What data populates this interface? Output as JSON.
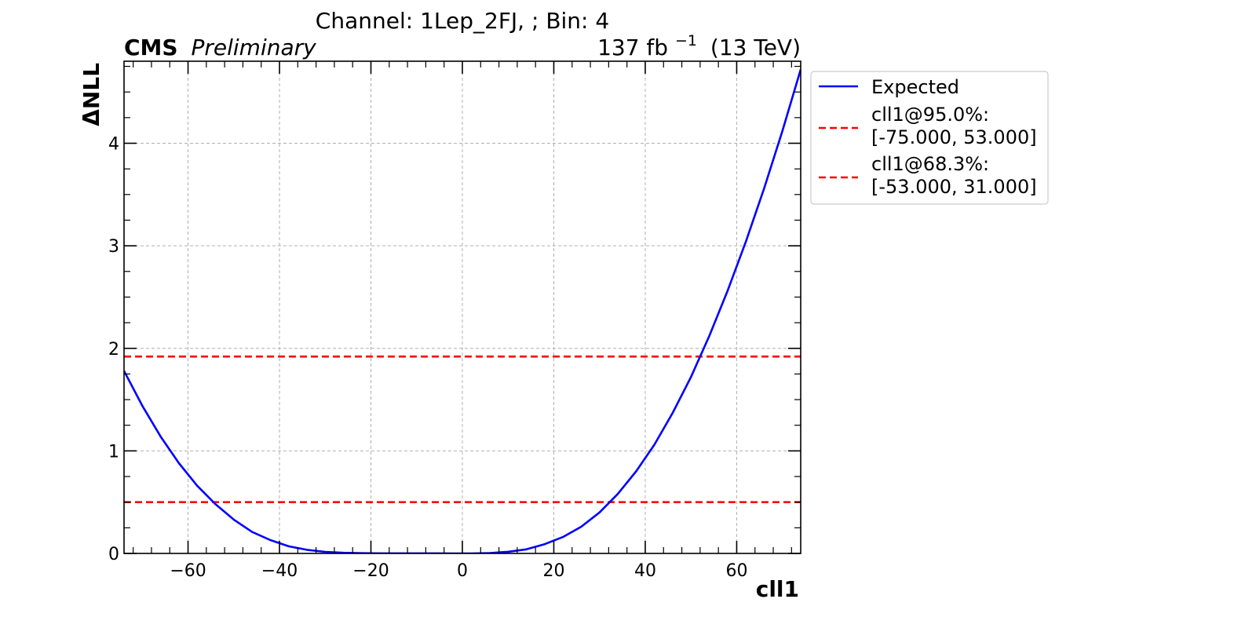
{
  "chart_data": {
    "type": "line",
    "title": "Channel: 1Lep_2FJ, ; Bin: 4",
    "experiment_label": "CMS",
    "status_label": "Preliminary",
    "lumi_label": {
      "value": "137 fb",
      "exponent": "−1",
      "energy": "(13 TeV)"
    },
    "xlabel": "cll1",
    "ylabel": "ΔNLL",
    "xlim": [
      -74,
      74
    ],
    "ylim": [
      0,
      4.8
    ],
    "x_ticks": [
      -60,
      -40,
      -20,
      0,
      20,
      40,
      60
    ],
    "x_tick_labels": [
      "−60",
      "−40",
      "−20",
      "0",
      "20",
      "40",
      "60"
    ],
    "y_ticks": [
      0,
      1,
      2,
      3,
      4
    ],
    "y_tick_labels": [
      "0",
      "1",
      "2",
      "3",
      "4"
    ],
    "grid": true,
    "legend_position": "outside-right-top",
    "series": [
      {
        "name": "Expected",
        "color": "#0000ff",
        "style": "solid",
        "x": [
          -74,
          -70,
          -66,
          -62,
          -58,
          -54,
          -50,
          -46,
          -42,
          -38,
          -34,
          -30,
          -26,
          -22,
          -18,
          -14,
          -10,
          -6,
          -2,
          0,
          2,
          6,
          10,
          14,
          18,
          22,
          26,
          30,
          34,
          38,
          42,
          46,
          50,
          54,
          58,
          62,
          66,
          70,
          74
        ],
        "y": [
          1.78,
          1.44,
          1.14,
          0.88,
          0.66,
          0.48,
          0.33,
          0.21,
          0.13,
          0.07,
          0.035,
          0.015,
          0.006,
          0.002,
          0.001,
          0.001,
          0.001,
          0.001,
          0.0,
          0.0,
          0.0,
          0.004,
          0.016,
          0.04,
          0.09,
          0.16,
          0.26,
          0.4,
          0.58,
          0.8,
          1.06,
          1.37,
          1.72,
          2.12,
          2.56,
          3.04,
          3.56,
          4.12,
          4.72
        ]
      }
    ],
    "hlines": [
      {
        "name": "cll1@95.0%:",
        "interval": "[-75.000, 53.000]",
        "y": 1.92,
        "color": "#ff0000",
        "style": "dashed"
      },
      {
        "name": "cll1@68.3%:",
        "interval": "[-53.000, 31.000]",
        "y": 0.5,
        "color": "#ff0000",
        "style": "dashed"
      }
    ]
  }
}
